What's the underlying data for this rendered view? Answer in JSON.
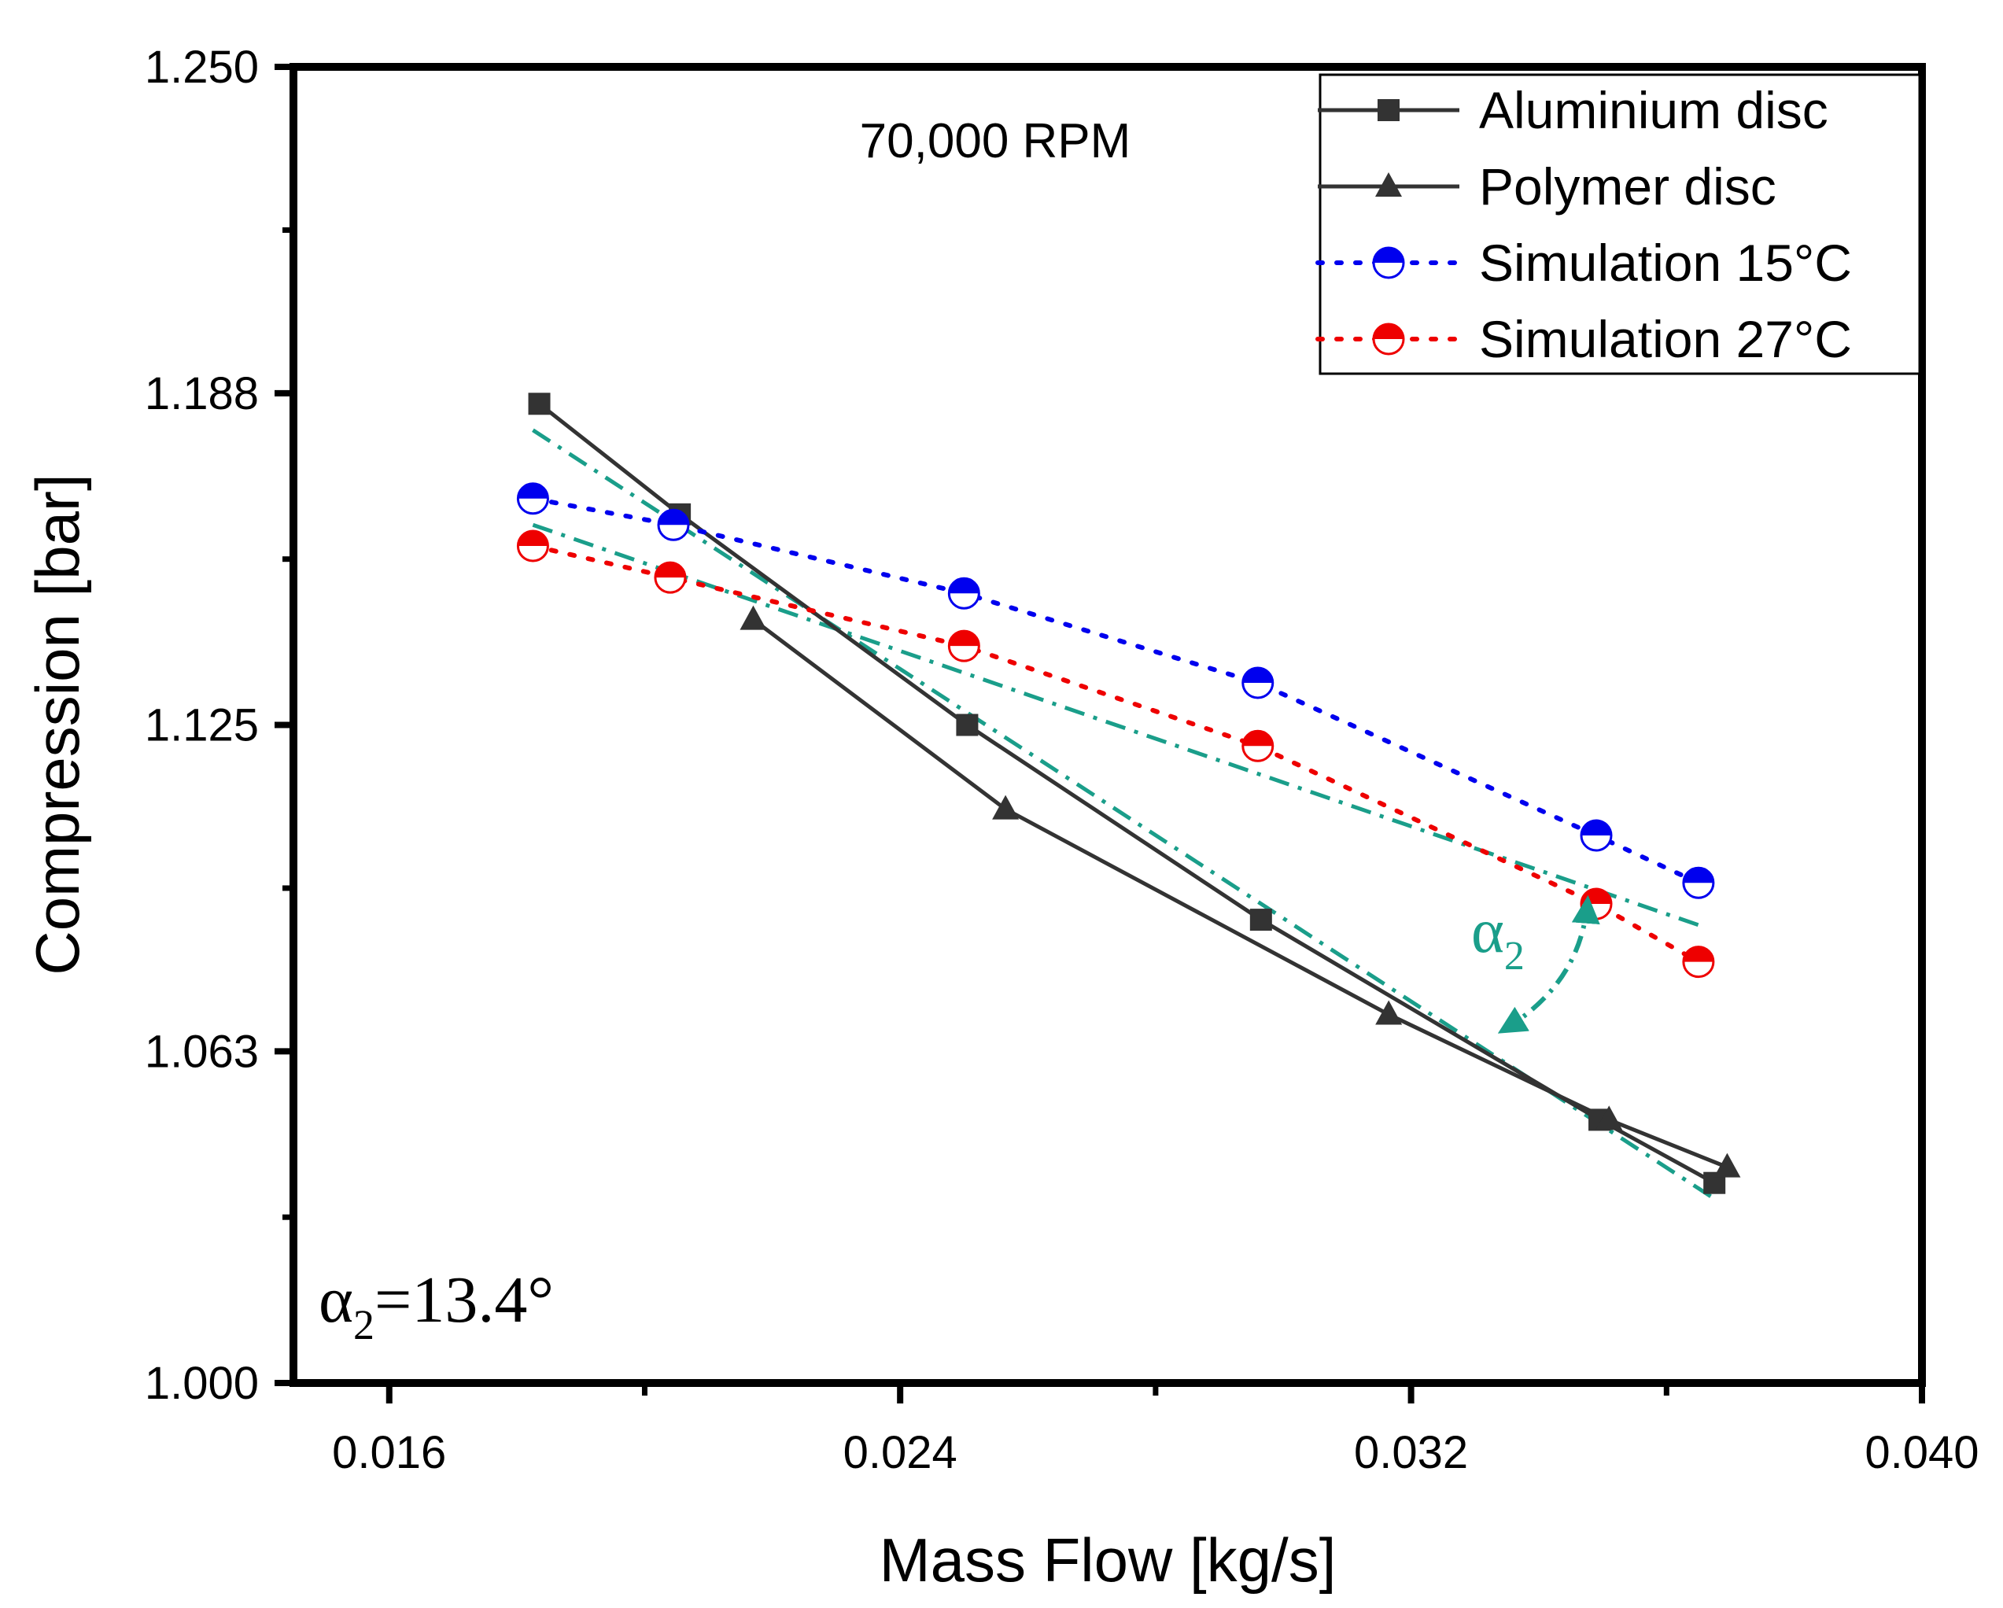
{
  "chart_data": {
    "type": "line",
    "title": "",
    "xlabel": "Mass Flow [kg/s]",
    "ylabel": "Compression [bar]",
    "xlim": [
      0.0145,
      0.04
    ],
    "ylim": [
      1.0,
      1.25
    ],
    "xticks": [
      0.016,
      0.024,
      0.032,
      0.04
    ],
    "xtick_labels": [
      "0.016",
      "0.024",
      "0.032",
      "0.040"
    ],
    "yticks": [
      1.0,
      1.063,
      1.125,
      1.188,
      1.25
    ],
    "ytick_labels": [
      "1.000",
      "1.063",
      "1.125",
      "1.188",
      "1.250"
    ],
    "grid": false,
    "legend_position": "top-right",
    "annotations": {
      "speed": "70,000 RPM",
      "angle_symbol": "α",
      "angle_subscript": "2",
      "angle_value_text": "=13.4°"
    },
    "series": [
      {
        "name": "Aluminium disc",
        "marker": "square",
        "line": "solid",
        "color": "#333333",
        "x": [
          0.01835,
          0.02055,
          0.02505,
          0.02965,
          0.03495,
          0.03675
        ],
        "y": [
          1.186,
          1.165,
          1.125,
          1.088,
          1.05,
          1.038
        ]
      },
      {
        "name": "Polymer disc",
        "marker": "triangle",
        "line": "solid",
        "color": "#333333",
        "x": [
          0.0217,
          0.02565,
          0.03165,
          0.0351,
          0.03695
        ],
        "y": [
          1.145,
          1.109,
          1.07,
          1.05,
          1.041
        ]
      },
      {
        "name": "Simulation 15°C",
        "marker": "half-circle",
        "line": "dotted",
        "color": "#0000ee",
        "x": [
          0.01825,
          0.02045,
          0.025,
          0.0296,
          0.0349,
          0.0365
        ],
        "y": [
          1.168,
          1.163,
          1.15,
          1.133,
          1.104,
          1.095
        ]
      },
      {
        "name": "Simulation 27°C",
        "marker": "half-circle",
        "line": "dotted",
        "color": "#ee0000",
        "x": [
          0.01825,
          0.0204,
          0.025,
          0.0296,
          0.0349,
          0.0365
        ],
        "y": [
          1.159,
          1.153,
          1.14,
          1.121,
          1.091,
          1.08
        ]
      }
    ],
    "fit_lines": [
      {
        "color": "#1a9e8a",
        "x": [
          0.01825,
          0.03675
        ],
        "y": [
          1.181,
          1.035
        ]
      },
      {
        "color": "#1a9e8a",
        "x": [
          0.01825,
          0.0365
        ],
        "y": [
          1.163,
          1.087
        ]
      }
    ],
    "colors": {
      "fit": "#1a9e8a",
      "experimental": "#333333",
      "sim15": "#0000ee",
      "sim27": "#ee0000"
    }
  }
}
